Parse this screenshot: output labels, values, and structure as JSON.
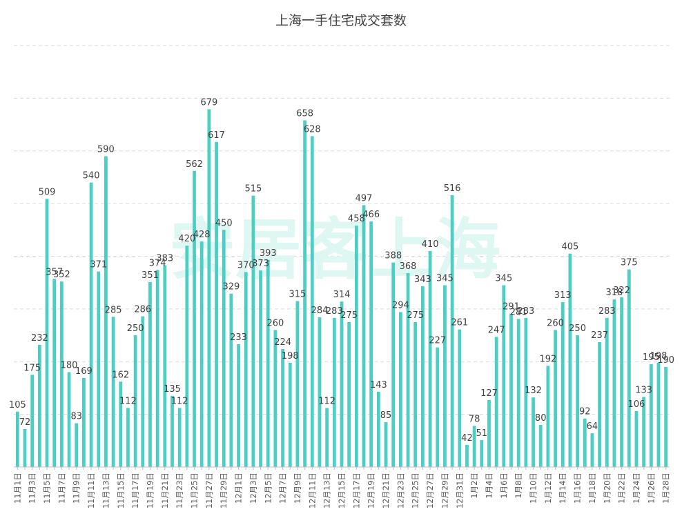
{
  "chart_data": {
    "type": "bar",
    "title": "上海一手住宅成交套数",
    "xlabel": "",
    "ylabel": "",
    "ylim": [
      0,
      800
    ],
    "grid": true,
    "bar_color": "#4ecdc4",
    "watermark_color": "#dff7f2",
    "watermark_text": "安居客上海",
    "categories": [
      "11月1日",
      "11月2日",
      "11月3日",
      "11月4日",
      "11月5日",
      "11月6日",
      "11月7日",
      "11月8日",
      "11月9日",
      "11月10日",
      "11月11日",
      "11月12日",
      "11月13日",
      "11月14日",
      "11月15日",
      "11月16日",
      "11月17日",
      "11月18日",
      "11月19日",
      "11月20日",
      "11月21日",
      "11月22日",
      "11月23日",
      "11月24日",
      "11月25日",
      "11月26日",
      "11月27日",
      "11月28日",
      "11月29日",
      "11月30日",
      "12月1日",
      "12月2日",
      "12月3日",
      "12月4日",
      "12月5日",
      "12月6日",
      "12月7日",
      "12月8日",
      "12月9日",
      "12月10日",
      "12月11日",
      "12月12日",
      "12月13日",
      "12月14日",
      "12月15日",
      "12月16日",
      "12月17日",
      "12月18日",
      "12月19日",
      "12月20日",
      "12月21日",
      "12月22日",
      "12月23日",
      "12月24日",
      "12月25日",
      "12月26日",
      "12月27日",
      "12月28日",
      "12月29日",
      "12月30日",
      "12月31日",
      "1月1日",
      "1月2日",
      "1月3日",
      "1月4日",
      "1月5日",
      "1月6日",
      "1月7日",
      "1月8日",
      "1月9日",
      "1月10日",
      "1月11日",
      "1月12日",
      "1月13日",
      "1月14日",
      "1月15日",
      "1月16日",
      "1月17日",
      "1月18日",
      "1月19日",
      "1月20日",
      "1月21日",
      "1月22日",
      "1月23日",
      "1月24日",
      "1月25日",
      "1月26日",
      "1月27日",
      "1月28日"
    ],
    "values": [
      105,
      72,
      175,
      232,
      509,
      357,
      352,
      180,
      83,
      169,
      540,
      371,
      590,
      285,
      162,
      112,
      250,
      286,
      351,
      374,
      383,
      135,
      112,
      420,
      562,
      428,
      679,
      617,
      450,
      329,
      233,
      370,
      515,
      373,
      393,
      260,
      224,
      198,
      315,
      658,
      628,
      284,
      112,
      283,
      314,
      275,
      458,
      497,
      466,
      143,
      85,
      388,
      294,
      368,
      275,
      343,
      410,
      227,
      345,
      516,
      261,
      42,
      78,
      51,
      127,
      247,
      345,
      291,
      281,
      283,
      132,
      80,
      192,
      260,
      313,
      405,
      250,
      92,
      64,
      237,
      283,
      318,
      322,
      375,
      106,
      133,
      195,
      198,
      190
    ],
    "tick_labels": [
      "11月1日",
      "11月3日",
      "11月5日",
      "11月7日",
      "11月9日",
      "11月11日",
      "11月13日",
      "11月15日",
      "11月17日",
      "11月19日",
      "11月21日",
      "11月23日",
      "11月25日",
      "11月27日",
      "11月29日",
      "12月1日",
      "12月3日",
      "12月5日",
      "12月7日",
      "12月9日",
      "12月11日",
      "12月13日",
      "12月15日",
      "12月17日",
      "12月19日",
      "12月21日",
      "12月23日",
      "12月25日",
      "12月27日",
      "12月29日",
      "12月31日",
      "1月2日",
      "1月4日",
      "1月6日",
      "1月8日",
      "1月10日",
      "1月12日",
      "1月14日",
      "1月16日",
      "1月18日",
      "1月20日",
      "1月22日",
      "1月24日",
      "1月26日",
      "1月28日"
    ]
  }
}
